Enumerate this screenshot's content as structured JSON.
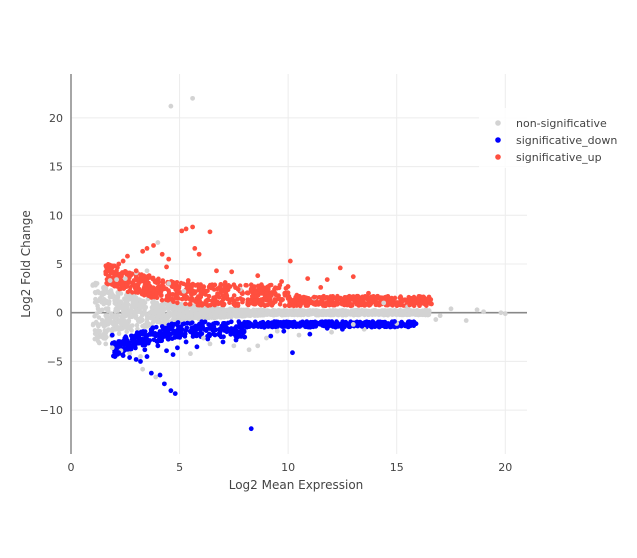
{
  "chart_data": {
    "type": "scatter",
    "title": "",
    "xlabel": "Log2 Mean Expression",
    "ylabel": "Log2 Fold Change",
    "xlim": [
      0,
      21
    ],
    "ylim": [
      -14.5,
      24.5
    ],
    "x_ticks": [
      "0",
      "5",
      "10",
      "15",
      "20"
    ],
    "y_ticks": [
      "−10",
      "−5",
      "0",
      "5",
      "10",
      "15",
      "20"
    ],
    "grid": true,
    "zero_line": true,
    "legend_position": "top-right",
    "series": [
      {
        "name": "non-significative",
        "color": "#d3d3d3",
        "note_points": "representative sample of dense cloud",
        "points": [
          [
            1.0,
            2.8
          ],
          [
            1.1,
            -2.7
          ],
          [
            1.2,
            3.0
          ],
          [
            1.3,
            -3.1
          ],
          [
            1.5,
            2.5
          ],
          [
            1.6,
            -3.2
          ],
          [
            1.8,
            3.3
          ],
          [
            1.9,
            -3.6
          ],
          [
            2.1,
            3.4
          ],
          [
            2.3,
            -3.9
          ],
          [
            2.5,
            3.5
          ],
          [
            2.7,
            -4.2
          ],
          [
            3.0,
            4.1
          ],
          [
            3.2,
            -4.5
          ],
          [
            3.5,
            4.3
          ],
          [
            4.0,
            7.2
          ],
          [
            3.3,
            -5.8
          ],
          [
            3.9,
            -6.6
          ],
          [
            4.6,
            21.2
          ],
          [
            5.6,
            22.0
          ],
          [
            5.5,
            -4.2
          ],
          [
            6.4,
            -3.2
          ],
          [
            7.5,
            -3.4
          ],
          [
            8.2,
            -3.8
          ],
          [
            8.6,
            -3.4
          ],
          [
            9.0,
            -2.6
          ],
          [
            10.5,
            -2.3
          ],
          [
            12.0,
            -2.0
          ],
          [
            13.5,
            -1.7
          ],
          [
            15.0,
            -1.1
          ],
          [
            16.8,
            -0.7
          ],
          [
            18.2,
            -0.8
          ],
          [
            17.5,
            0.4
          ],
          [
            19.0,
            0.1
          ],
          [
            19.8,
            0.0
          ],
          [
            20.0,
            -0.1
          ],
          [
            17.0,
            -0.3
          ],
          [
            16.2,
            0.2
          ],
          [
            15.5,
            0.6
          ],
          [
            18.7,
            0.3
          ],
          [
            5.2,
            2.2
          ],
          [
            6.1,
            -2.6
          ],
          [
            4.5,
            3.0
          ],
          [
            7.8,
            2.4
          ],
          [
            9.5,
            -1.9
          ],
          [
            11.2,
            1.5
          ],
          [
            13.0,
            -1.2
          ],
          [
            14.4,
            1.0
          ]
        ]
      },
      {
        "name": "significative_down",
        "color": "#0000ff",
        "points": [
          [
            1.9,
            -2.3
          ],
          [
            2.0,
            -3.1
          ],
          [
            2.2,
            -4.1
          ],
          [
            2.4,
            -4.4
          ],
          [
            2.5,
            -3.0
          ],
          [
            2.7,
            -4.6
          ],
          [
            2.9,
            -3.3
          ],
          [
            3.0,
            -4.8
          ],
          [
            3.2,
            -5.0
          ],
          [
            3.4,
            -3.8
          ],
          [
            3.7,
            -6.2
          ],
          [
            4.1,
            -6.4
          ],
          [
            4.3,
            -7.3
          ],
          [
            4.6,
            -8.0
          ],
          [
            4.8,
            -8.3
          ],
          [
            3.6,
            -2.9
          ],
          [
            4.0,
            -3.4
          ],
          [
            4.4,
            -3.9
          ],
          [
            4.9,
            -3.6
          ],
          [
            5.3,
            -3.0
          ],
          [
            5.8,
            -3.5
          ],
          [
            6.3,
            -2.7
          ],
          [
            7.0,
            -3.0
          ],
          [
            7.6,
            -2.8
          ],
          [
            8.3,
            -11.9
          ],
          [
            9.2,
            -2.4
          ],
          [
            10.2,
            -4.1
          ],
          [
            11.0,
            -2.2
          ],
          [
            12.5,
            -1.7
          ],
          [
            14.3,
            -1.3
          ],
          [
            15.8,
            -1.1
          ],
          [
            3.5,
            -4.5
          ],
          [
            2.6,
            -3.6
          ],
          [
            5.0,
            -2.3
          ],
          [
            6.8,
            -2.2
          ],
          [
            8.0,
            -2.5
          ],
          [
            9.8,
            -1.9
          ],
          [
            11.8,
            -1.6
          ],
          [
            13.4,
            -1.4
          ],
          [
            14.9,
            -0.9
          ],
          [
            3.1,
            -2.6
          ],
          [
            4.2,
            -2.5
          ],
          [
            5.6,
            -2.0
          ],
          [
            7.3,
            -1.7
          ],
          [
            8.9,
            -1.5
          ],
          [
            10.6,
            -1.3
          ],
          [
            12.2,
            -1.1
          ],
          [
            4.7,
            -4.3
          ]
        ]
      },
      {
        "name": "significative_up",
        "color": "#ff4f3f",
        "points": [
          [
            1.6,
            4.2
          ],
          [
            1.8,
            4.5
          ],
          [
            2.0,
            4.8
          ],
          [
            2.2,
            5.0
          ],
          [
            2.4,
            5.3
          ],
          [
            2.6,
            5.8
          ],
          [
            2.8,
            4.0
          ],
          [
            3.0,
            4.3
          ],
          [
            3.3,
            6.3
          ],
          [
            3.5,
            6.6
          ],
          [
            3.8,
            6.9
          ],
          [
            4.2,
            6.0
          ],
          [
            4.5,
            5.5
          ],
          [
            5.1,
            8.4
          ],
          [
            5.3,
            8.6
          ],
          [
            5.6,
            8.8
          ],
          [
            6.4,
            8.3
          ],
          [
            5.7,
            6.6
          ],
          [
            5.9,
            6.0
          ],
          [
            6.7,
            4.3
          ],
          [
            7.4,
            4.2
          ],
          [
            8.6,
            3.8
          ],
          [
            9.1,
            2.7
          ],
          [
            9.7,
            3.2
          ],
          [
            10.1,
            5.3
          ],
          [
            10.9,
            3.5
          ],
          [
            11.5,
            2.6
          ],
          [
            12.4,
            4.6
          ],
          [
            13.0,
            3.7
          ],
          [
            13.7,
            2.0
          ],
          [
            14.5,
            1.6
          ],
          [
            15.2,
            1.5
          ],
          [
            16.0,
            1.3
          ],
          [
            16.6,
            0.9
          ],
          [
            2.9,
            3.3
          ],
          [
            3.6,
            3.8
          ],
          [
            4.0,
            2.6
          ],
          [
            4.8,
            3.0
          ],
          [
            5.4,
            3.3
          ],
          [
            6.0,
            2.7
          ],
          [
            6.9,
            2.9
          ],
          [
            7.7,
            2.4
          ],
          [
            8.3,
            2.2
          ],
          [
            9.4,
            2.0
          ],
          [
            10.4,
            1.8
          ],
          [
            11.2,
            1.6
          ],
          [
            12.0,
            1.4
          ],
          [
            12.8,
            1.2
          ],
          [
            13.4,
            1.1
          ],
          [
            14.1,
            0.9
          ],
          [
            15.6,
            0.8
          ],
          [
            4.4,
            4.7
          ],
          [
            7.1,
            3.1
          ],
          [
            9.9,
            2.5
          ],
          [
            11.8,
            3.4
          ]
        ]
      }
    ]
  }
}
